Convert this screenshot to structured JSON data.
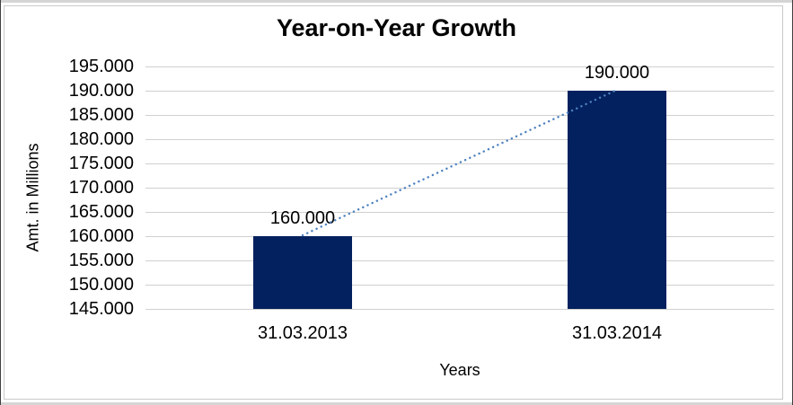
{
  "chart_data": {
    "type": "bar",
    "title": "Year-on-Year Growth",
    "xlabel": "Years",
    "ylabel": "Amt. in Millions",
    "categories": [
      "31.03.2013",
      "31.03.2014"
    ],
    "values": [
      160000,
      190000
    ],
    "data_labels": [
      "160.000",
      "190.000"
    ],
    "y_ticks": [
      {
        "value": 145000,
        "label": "145.000"
      },
      {
        "value": 150000,
        "label": "150.000"
      },
      {
        "value": 155000,
        "label": "155.000"
      },
      {
        "value": 160000,
        "label": "160.000"
      },
      {
        "value": 165000,
        "label": "165.000"
      },
      {
        "value": 170000,
        "label": "170.000"
      },
      {
        "value": 175000,
        "label": "175.000"
      },
      {
        "value": 180000,
        "label": "180.000"
      },
      {
        "value": 185000,
        "label": "185.000"
      },
      {
        "value": 190000,
        "label": "190.000"
      },
      {
        "value": 195000,
        "label": "195.000"
      }
    ],
    "ylim": [
      145000,
      195000
    ],
    "grid": true,
    "legend": "none",
    "trendline": {
      "style": "dotted",
      "color": "#4e81c0"
    },
    "colors": {
      "bar": "#02215e",
      "gridline": "#d0d0d0",
      "text": "#000000",
      "background": "#ffffff"
    }
  }
}
